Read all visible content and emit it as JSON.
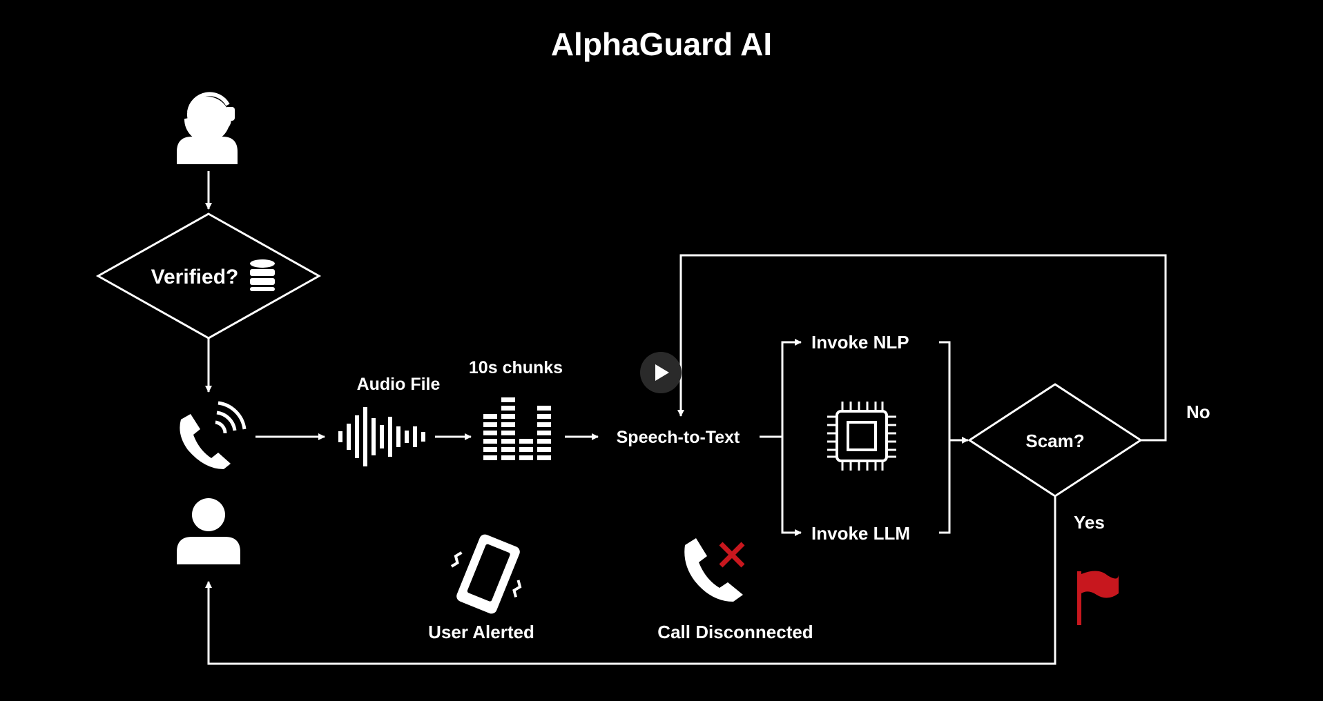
{
  "title": "AlphaGuard AI",
  "nodes": {
    "verified": "Verified?",
    "audio_file": "Audio File",
    "chunks": "10s chunks",
    "speech_to_text": "Speech-to-Text",
    "invoke_nlp": "Invoke NLP",
    "invoke_llm": "Invoke LLM",
    "scam": "Scam?",
    "user_alerted": "User Alerted",
    "call_disconnected": "Call Disconnected"
  },
  "branches": {
    "no": "No",
    "yes": "Yes"
  },
  "icons": {
    "caller": "call-center-agent-icon",
    "database": "database-icon",
    "phone_ringing": "phone-ringing-icon",
    "user": "user-icon",
    "waveform": "audio-waveform-icon",
    "equalizer": "equalizer-bars-icon",
    "cpu": "cpu-chip-icon",
    "play": "play-icon",
    "vibrating_phone": "vibrating-phone-icon",
    "disconnected_phone": "call-disconnected-icon",
    "flag": "red-flag-icon"
  },
  "colors": {
    "background": "#000000",
    "foreground": "#ffffff",
    "alert_red": "#c8171e",
    "play_button": "#2a2a2a"
  }
}
